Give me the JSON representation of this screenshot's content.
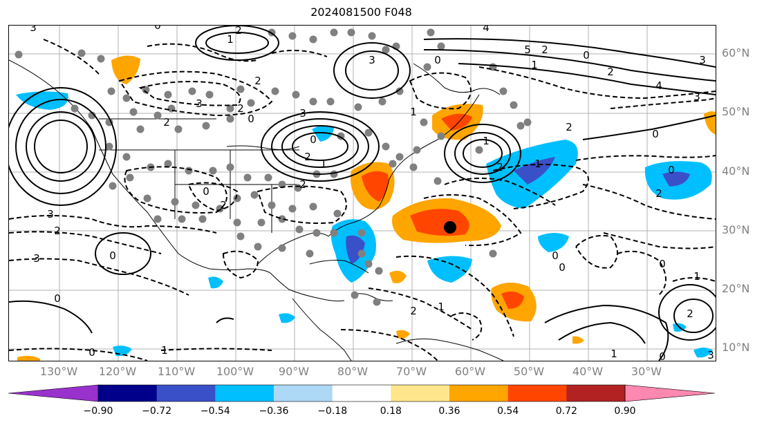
{
  "title": "2024081500 F048",
  "lat_labels": [
    "60°N",
    "50°N",
    "40°N",
    "30°N",
    "20°N",
    "10°N"
  ],
  "lon_labels": [
    "130°W",
    "120°W",
    "110°W",
    "100°W",
    "90°W",
    "80°W",
    "70°W",
    "60°W",
    "50°W",
    "40°W",
    "30°W"
  ],
  "colorbar": {
    "ticks": [
      "−0.90",
      "−0.72",
      "−0.54",
      "−0.36",
      "−0.18",
      "0.18",
      "0.36",
      "0.54",
      "0.72",
      "0.90"
    ],
    "colors": [
      "#9932cc",
      "#00008b",
      "#3a50c8",
      "#00bfff",
      "#add8f6",
      "#ffffff",
      "#ffe68c",
      "#ffa500",
      "#ff4500",
      "#b22222",
      "#ff88b0"
    ],
    "extend": "both"
  },
  "contour_labels": [
    "3",
    "0",
    "2",
    "1",
    "3",
    "4",
    "5",
    "2",
    "0",
    "1",
    "2",
    "3",
    "4",
    "3",
    "2",
    "2",
    "0",
    "2",
    "3",
    "3",
    "0",
    "2",
    "1",
    "2",
    "0",
    "2",
    "3",
    "2",
    "3",
    "0",
    "0",
    "2",
    "1",
    "0",
    "2",
    "1",
    "0",
    "1",
    "2",
    "0",
    "0",
    "0",
    "2",
    "1",
    "1",
    "0",
    "3",
    "1",
    "0",
    "0",
    "2",
    "1"
  ],
  "marker_label": "storm-center"
}
